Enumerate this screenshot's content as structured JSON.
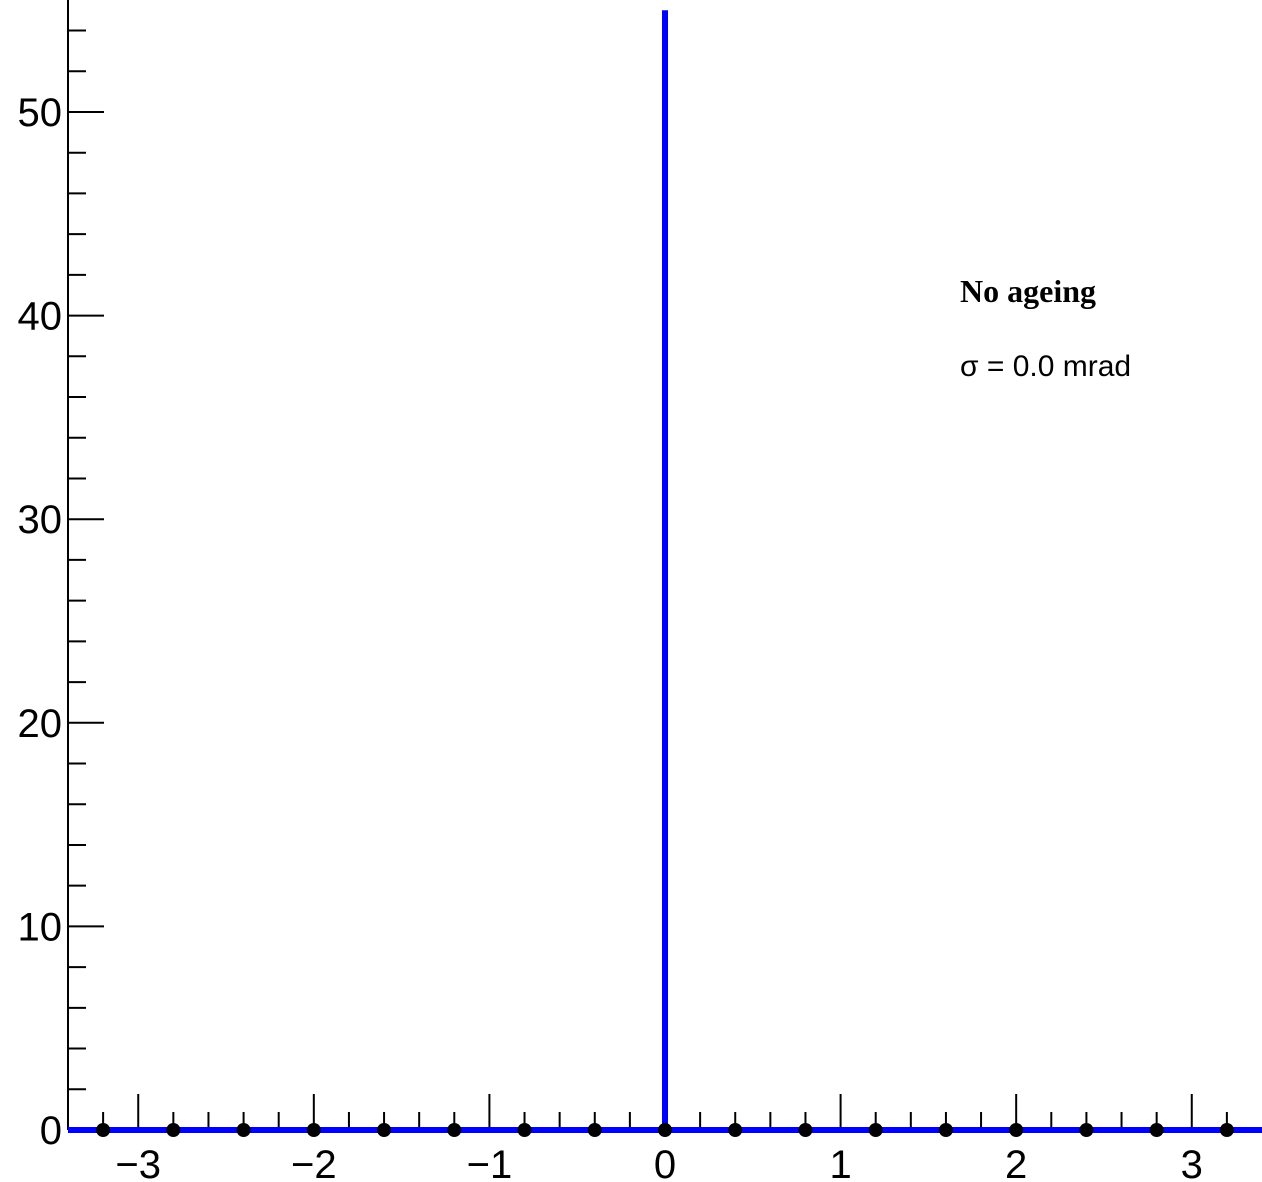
{
  "chart_data": {
    "type": "line",
    "title": "",
    "xlabel": "",
    "ylabel": "",
    "xlim": [
      -3.4,
      3.4
    ],
    "ylim": [
      0,
      55.5
    ],
    "x_ticks": [
      {
        "value": -3,
        "label": "−3"
      },
      {
        "value": -2,
        "label": "−2"
      },
      {
        "value": -1,
        "label": "−1"
      },
      {
        "value": 0,
        "label": "0"
      },
      {
        "value": 1,
        "label": "1"
      },
      {
        "value": 2,
        "label": "2"
      },
      {
        "value": 3,
        "label": "3"
      }
    ],
    "y_ticks": [
      {
        "value": 0,
        "label": "0"
      },
      {
        "value": 10,
        "label": "10"
      },
      {
        "value": 20,
        "label": "20"
      },
      {
        "value": 30,
        "label": "30"
      },
      {
        "value": 40,
        "label": "40"
      },
      {
        "value": 50,
        "label": "50"
      }
    ],
    "grid": false,
    "series": [
      {
        "kind": "markers",
        "color": "#000000",
        "x": [
          -3.2,
          -2.8,
          -2.4,
          -2.0,
          -1.6,
          -1.2,
          -0.8,
          -0.4,
          0.0,
          0.4,
          0.8,
          1.2,
          1.6,
          2.0,
          2.4,
          2.8,
          3.2
        ],
        "y": [
          0,
          0,
          0,
          0,
          0,
          0,
          0,
          0,
          0,
          0,
          0,
          0,
          0,
          0,
          0,
          0,
          0
        ]
      },
      {
        "kind": "line",
        "color": "#0000ff",
        "x": [
          -3.4,
          0.0,
          0.0,
          0.0,
          3.4
        ],
        "y": [
          0,
          0,
          55,
          0,
          0
        ]
      }
    ],
    "annotations": {
      "title": "No ageing",
      "text": "σ = 0.0 mrad"
    }
  }
}
